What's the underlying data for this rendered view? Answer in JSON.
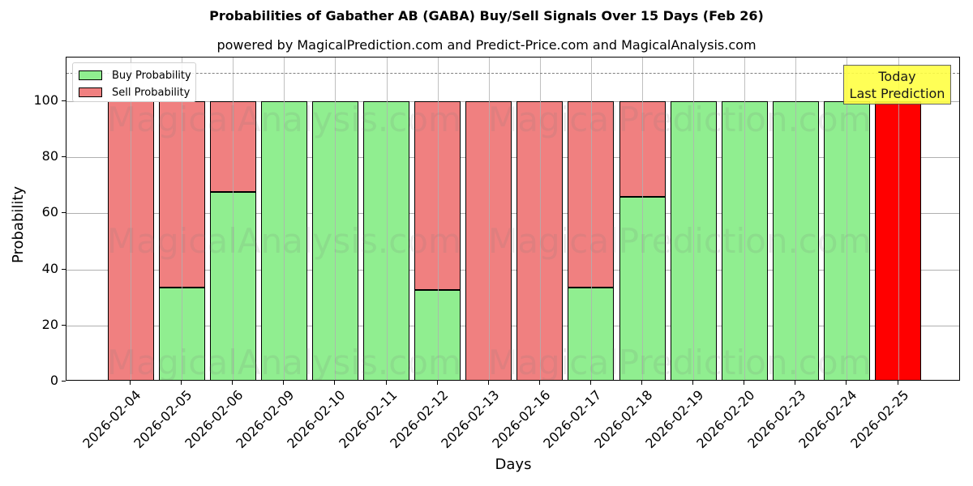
{
  "chart_data": {
    "type": "bar",
    "stacked": true,
    "title": "Probabilities of Gabather AB (GABA) Buy/Sell Signals Over 15 Days (Feb 26)",
    "subtitle": "powered by MagicalPrediction.com and Predict-Price.com and MagicalAnalysis.com",
    "xlabel": "Days",
    "ylabel": "Probability",
    "ylim": [
      0,
      115
    ],
    "yticks": [
      0,
      20,
      40,
      60,
      80,
      100
    ],
    "grid": true,
    "legend_position": "upper left",
    "categories": [
      "2026-02-04",
      "2026-02-05",
      "2026-02-06",
      "2026-02-09",
      "2026-02-10",
      "2026-02-11",
      "2026-02-12",
      "2026-02-13",
      "2026-02-16",
      "2026-02-17",
      "2026-02-18",
      "2026-02-19",
      "2026-02-20",
      "2026-02-23",
      "2026-02-24",
      "2026-02-25"
    ],
    "series": [
      {
        "name": "Buy Probability",
        "color": "#90ee90",
        "values": [
          0,
          33.5,
          67.5,
          100,
          100,
          100,
          32.7,
          0,
          0,
          33.5,
          65.9,
          100,
          100,
          100,
          100,
          0
        ]
      },
      {
        "name": "Sell Probability",
        "color": "#f08080",
        "values": [
          100,
          66.5,
          32.5,
          0,
          0,
          0,
          67.3,
          100,
          100,
          66.5,
          34.1,
          0,
          0,
          0,
          0,
          100
        ]
      }
    ],
    "highlight": {
      "category": "2026-02-25",
      "color": "#ff0000",
      "label": "Today\nLast Prediction"
    },
    "reference_line": {
      "y": 110,
      "style": "dashed",
      "color": "#808080"
    },
    "watermarks": [
      "MagicalAnalysis.com",
      "MagicalPrediction.com"
    ]
  },
  "labels": {
    "title": "Probabilities of Gabather AB (GABA) Buy/Sell Signals Over 15 Days (Feb 26)",
    "subtitle": "powered by MagicalPrediction.com and Predict-Price.com and MagicalAnalysis.com",
    "xlabel": "Days",
    "ylabel": "Probability",
    "legend_buy": "Buy Probability",
    "legend_sell": "Sell Probability",
    "today_line1": "Today",
    "today_line2": "Last Prediction",
    "wm1": "MagicalAnalysis.com",
    "wm2": "MagicalPrediction.com"
  }
}
